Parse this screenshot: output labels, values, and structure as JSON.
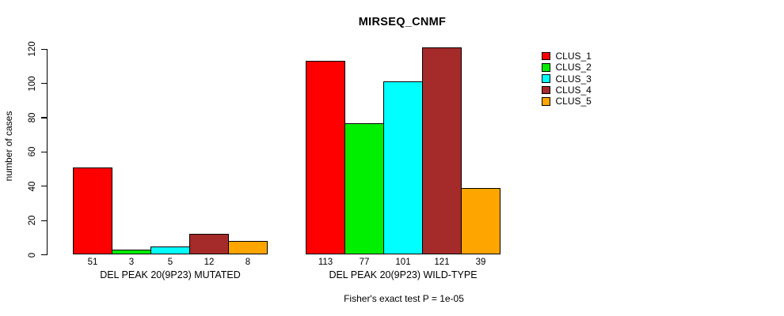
{
  "chart_data": {
    "type": "bar",
    "title": "MIRSEQ_CNMF",
    "ylabel": "number of cases",
    "xlabel": "",
    "annotation": "Fisher's exact test P = 1e-05",
    "ylim": [
      0,
      120
    ],
    "yticks": [
      0,
      20,
      40,
      60,
      80,
      100,
      120
    ],
    "grid": false,
    "legend_position": "top-right",
    "categories": [
      "CLUS_1",
      "CLUS_2",
      "CLUS_3",
      "CLUS_4",
      "CLUS_5"
    ],
    "colors": [
      "#FF0000",
      "#00EE00",
      "#00FFFF",
      "#A52A2A",
      "#FFA500"
    ],
    "groups": [
      {
        "label": "DEL PEAK 20(9P23) MUTATED",
        "values": [
          51,
          3,
          5,
          12,
          8
        ]
      },
      {
        "label": "DEL PEAK 20(9P23) WILD-TYPE",
        "values": [
          113,
          77,
          101,
          121,
          39
        ]
      }
    ]
  }
}
